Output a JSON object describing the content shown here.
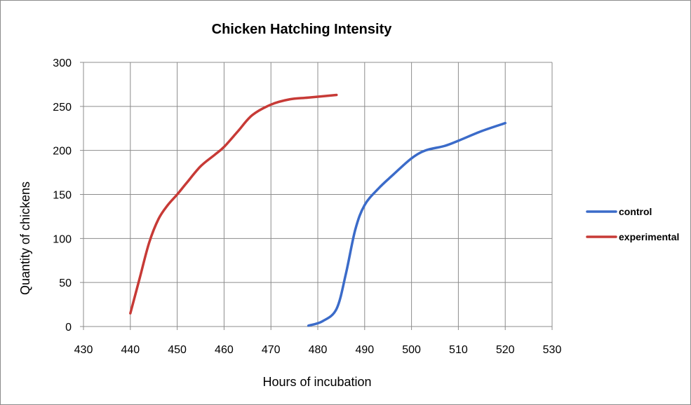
{
  "chart_data": {
    "type": "line",
    "title": "Chicken Hatching Intensity",
    "xlabel": "Hours of incubation",
    "ylabel": "Quantity of chickens",
    "xlim": [
      430,
      530
    ],
    "ylim": [
      0,
      300
    ],
    "x_ticks": [
      430,
      440,
      450,
      460,
      470,
      480,
      490,
      500,
      510,
      520,
      530
    ],
    "y_ticks": [
      0,
      50,
      100,
      150,
      200,
      250,
      300
    ],
    "grid": true,
    "legend_position": "right",
    "series": [
      {
        "name": "control",
        "color": "#3B6BC9",
        "points": [
          [
            478,
            1
          ],
          [
            481,
            6
          ],
          [
            484,
            20
          ],
          [
            486,
            60
          ],
          [
            488,
            110
          ],
          [
            490,
            138
          ],
          [
            493,
            157
          ],
          [
            496,
            172
          ],
          [
            500,
            191
          ],
          [
            503,
            200
          ],
          [
            507,
            205
          ],
          [
            510,
            211
          ],
          [
            515,
            222
          ],
          [
            520,
            231
          ]
        ]
      },
      {
        "name": "experimental",
        "color": "#C73A36",
        "points": [
          [
            440,
            15
          ],
          [
            442,
            55
          ],
          [
            444,
            95
          ],
          [
            446,
            122
          ],
          [
            448,
            138
          ],
          [
            450,
            150
          ],
          [
            452,
            163
          ],
          [
            455,
            182
          ],
          [
            458,
            195
          ],
          [
            460,
            204
          ],
          [
            463,
            222
          ],
          [
            466,
            240
          ],
          [
            470,
            252
          ],
          [
            474,
            258
          ],
          [
            478,
            260
          ],
          [
            484,
            263
          ]
        ]
      }
    ]
  }
}
